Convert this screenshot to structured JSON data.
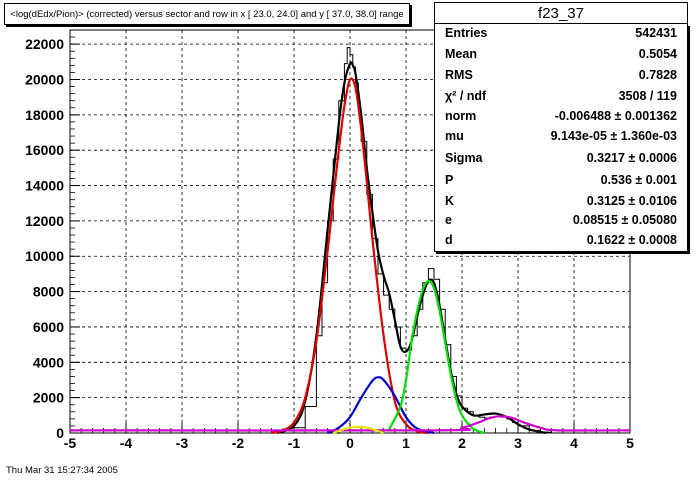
{
  "title": "<log(dEdx/Pion)> (corrected) versus sector and row in x [ 23.0, 24.0] and y [ 37.0, 38.0] range",
  "histogram_name": "f23_37",
  "stats": [
    {
      "label": "Entries",
      "value": "542431"
    },
    {
      "label": "Mean",
      "value": "0.5054"
    },
    {
      "label": "RMS",
      "value": "0.7828"
    },
    {
      "label": "χ² / ndf",
      "value": "3508 / 119"
    },
    {
      "label": "norm",
      "value": "-0.006488 ± 0.001362"
    },
    {
      "label": "mu",
      "value": "9.143e-05 ± 1.360e-03"
    },
    {
      "label": "Sigma",
      "value": "0.3217 ± 0.0006"
    },
    {
      "label": "P",
      "value": "0.536 ± 0.001"
    },
    {
      "label": "K",
      "value": "0.3125 ± 0.0106"
    },
    {
      "label": "e",
      "value": "0.08515 ± 0.05080"
    },
    {
      "label": "d",
      "value": "0.1622 ± 0.0008"
    }
  ],
  "timestamp": "Thu Mar 31 15:27:34 2005",
  "chart_data": {
    "type": "line",
    "xlim": [
      -5,
      5
    ],
    "ylim": [
      0,
      22800
    ],
    "x_ticks": [
      -5,
      -4,
      -3,
      -2,
      -1,
      0,
      1,
      2,
      3,
      4,
      5
    ],
    "y_ticks": [
      0,
      2000,
      4000,
      6000,
      8000,
      10000,
      12000,
      14000,
      16000,
      18000,
      20000,
      22000
    ],
    "grid": true,
    "histogram": {
      "color": "#000000",
      "x": [
        -1.2,
        -1.0,
        -0.8,
        -0.6,
        -0.5,
        -0.4,
        -0.3,
        -0.2,
        -0.1,
        -0.05,
        0.0,
        0.05,
        0.1,
        0.15,
        0.2,
        0.3,
        0.4,
        0.5,
        0.6,
        0.7,
        0.8,
        0.9,
        1.0,
        1.1,
        1.2,
        1.3,
        1.4,
        1.5,
        1.6,
        1.7,
        1.8,
        1.9,
        2.0,
        2.1,
        2.2,
        2.3,
        2.4,
        2.5,
        2.6,
        2.7,
        2.8,
        2.9,
        3.0,
        3.2,
        3.4,
        3.6,
        4.0
      ],
      "y": [
        0,
        300,
        1500,
        5500,
        8500,
        12000,
        15500,
        18800,
        20900,
        21800,
        21400,
        20700,
        19800,
        18200,
        16500,
        13500,
        11000,
        9000,
        7800,
        7000,
        6000,
        4800,
        4700,
        5500,
        7000,
        8500,
        9300,
        8700,
        7000,
        5000,
        3200,
        2100,
        1400,
        1200,
        1000,
        900,
        850,
        900,
        950,
        900,
        800,
        600,
        400,
        150,
        50,
        0,
        0
      ]
    },
    "series": [
      {
        "color": "#000000",
        "x": [
          -1.3,
          -1.0,
          -0.8,
          -0.6,
          -0.4,
          -0.2,
          -0.1,
          0.0,
          0.05,
          0.1,
          0.2,
          0.3,
          0.4,
          0.5,
          0.6,
          0.7,
          0.8,
          0.9,
          1.0,
          1.1,
          1.2,
          1.3,
          1.4,
          1.5,
          1.6,
          1.7,
          1.8,
          1.9,
          2.0,
          2.2,
          2.4,
          2.6,
          2.8,
          3.0,
          3.2,
          3.5
        ],
        "y": [
          0,
          400,
          1800,
          5500,
          11500,
          17500,
          19800,
          20900,
          20800,
          20300,
          18000,
          15000,
          12500,
          10300,
          8900,
          7900,
          6400,
          4900,
          4600,
          5200,
          6600,
          7800,
          8600,
          8500,
          7200,
          5300,
          3500,
          2200,
          1500,
          1000,
          1050,
          1100,
          900,
          500,
          200,
          0
        ]
      },
      {
        "color": "#dd0000",
        "x": [
          -1.4,
          -1.2,
          -1.0,
          -0.8,
          -0.6,
          -0.4,
          -0.3,
          -0.2,
          -0.1,
          0.0,
          0.1,
          0.2,
          0.3,
          0.4,
          0.6,
          0.8,
          1.0,
          1.2,
          1.4
        ],
        "y": [
          0,
          150,
          600,
          2000,
          5200,
          10300,
          13200,
          16000,
          18500,
          20000,
          19500,
          17200,
          14200,
          11000,
          5500,
          1800,
          500,
          100,
          0
        ]
      },
      {
        "color": "#0000cc",
        "x": [
          -0.4,
          -0.2,
          0.0,
          0.2,
          0.4,
          0.5,
          0.6,
          0.8,
          1.0,
          1.2,
          1.5
        ],
        "y": [
          0,
          300,
          900,
          2000,
          2950,
          3150,
          3000,
          2100,
          900,
          250,
          0
        ]
      },
      {
        "color": "#00dd00",
        "x": [
          0.7,
          0.9,
          1.0,
          1.1,
          1.2,
          1.3,
          1.4,
          1.5,
          1.6,
          1.7,
          1.8,
          1.9,
          2.0,
          2.2,
          2.4
        ],
        "y": [
          200,
          1500,
          3000,
          5200,
          6900,
          8100,
          8600,
          8200,
          6900,
          5100,
          3300,
          1900,
          1000,
          250,
          0
        ]
      },
      {
        "color": "#cc00cc",
        "x": [
          -5,
          1.5,
          2.0,
          2.3,
          2.5,
          2.7,
          2.9,
          3.1,
          3.4,
          3.7,
          5
        ],
        "y": [
          150,
          150,
          300,
          600,
          850,
          950,
          850,
          600,
          300,
          150,
          150
        ]
      },
      {
        "color": "#e6e600",
        "x": [
          -0.3,
          0.0,
          0.3,
          0.6
        ],
        "y": [
          0,
          300,
          300,
          0
        ]
      }
    ]
  }
}
